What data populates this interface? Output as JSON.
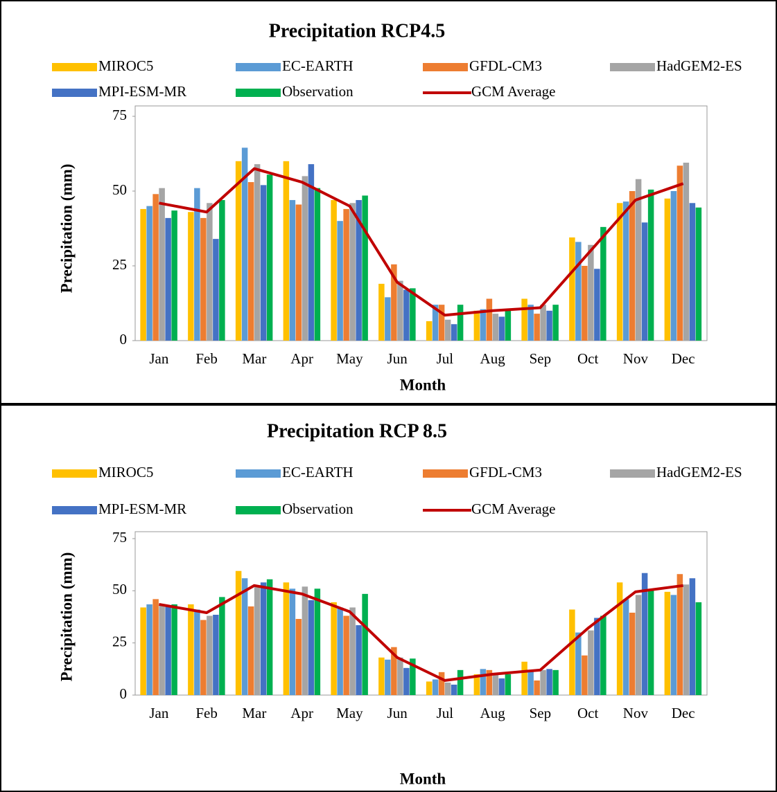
{
  "chart_data": [
    {
      "type": "bar",
      "title": "Precipitation RCP4.5",
      "x_label": "Month",
      "y_label": "Precipitation (mm)",
      "categories": [
        "Jan",
        "Feb",
        "Mar",
        "Apr",
        "May",
        "Jun",
        "Jul",
        "Aug",
        "Sep",
        "Oct",
        "Nov",
        "Dec"
      ],
      "ylim": [
        0,
        75
      ],
      "yticks": [
        0,
        25,
        50,
        75
      ],
      "legend": "top",
      "series": [
        {
          "name": "MIROC5",
          "color": "#FFC000",
          "values": [
            44,
            43,
            60,
            60,
            47,
            19,
            6.5,
            10,
            14,
            34.5,
            46,
            47.5
          ]
        },
        {
          "name": "EC-EARTH",
          "color": "#5B9BD5",
          "values": [
            45,
            51,
            64.5,
            47,
            40,
            14.5,
            12,
            10.5,
            12,
            33,
            46.5,
            50
          ]
        },
        {
          "name": "GFDL-CM3",
          "color": "#ED7D31",
          "values": [
            49,
            41,
            53,
            45.5,
            44,
            25.5,
            12,
            14,
            9,
            25,
            50,
            58.5
          ]
        },
        {
          "name": "HadGEM2-ES",
          "color": "#A5A5A5",
          "values": [
            51,
            46,
            59,
            55,
            46,
            20,
            7,
            9,
            12,
            32,
            54,
            59.5
          ]
        },
        {
          "name": "MPI-ESM-MR",
          "color": "#4472C4",
          "values": [
            41,
            34,
            52,
            59,
            47,
            17,
            5.5,
            8,
            10,
            24,
            39.5,
            46
          ]
        },
        {
          "name": "Observation",
          "color": "#00B050",
          "values": [
            43.5,
            47,
            55.5,
            51,
            48.5,
            17.5,
            12,
            10,
            12,
            38,
            50.5,
            44.5
          ]
        },
        {
          "name": "GCM Average",
          "color": "#C00000",
          "kind": "line",
          "values": [
            46,
            43,
            57.5,
            53,
            45,
            19.5,
            8.5,
            10,
            11,
            29,
            47,
            52.5
          ]
        }
      ]
    },
    {
      "type": "bar",
      "title": "Precipitation RCP 8.5",
      "x_label": "Month",
      "y_label": "Precipitation (mm)",
      "categories": [
        "Jan",
        "Feb",
        "Mar",
        "Apr",
        "May",
        "Jun",
        "Jul",
        "Aug",
        "Sep",
        "Oct",
        "Nov",
        "Dec"
      ],
      "ylim": [
        0,
        75
      ],
      "yticks": [
        0,
        25,
        50,
        75
      ],
      "legend": "top",
      "series": [
        {
          "name": "MIROC5",
          "color": "#FFC000",
          "values": [
            42,
            43.5,
            59.5,
            54,
            44.5,
            18,
            6.5,
            10,
            16,
            41,
            54,
            49.5
          ]
        },
        {
          "name": "EC-EARTH",
          "color": "#5B9BD5",
          "values": [
            43.5,
            41,
            56,
            51,
            42,
            17,
            7.5,
            12.5,
            12,
            30,
            46,
            48
          ]
        },
        {
          "name": "GFDL-CM3",
          "color": "#ED7D31",
          "values": [
            46,
            36,
            42.5,
            36.5,
            38,
            23,
            11,
            12,
            7,
            19,
            39.5,
            58
          ]
        },
        {
          "name": "HadGEM2-ES",
          "color": "#A5A5A5",
          "values": [
            43,
            38,
            52,
            52,
            42,
            18,
            6,
            10,
            12,
            31,
            48,
            53
          ]
        },
        {
          "name": "MPI-ESM-MR",
          "color": "#4472C4",
          "values": [
            42.5,
            38.5,
            54,
            45.5,
            33.5,
            13,
            5,
            8,
            12.5,
            37,
            58.5,
            56
          ]
        },
        {
          "name": "Observation",
          "color": "#00B050",
          "values": [
            43.5,
            47,
            55.5,
            51,
            48.5,
            17.5,
            12,
            10,
            12,
            38,
            50.5,
            44.5
          ]
        },
        {
          "name": "GCM Average",
          "color": "#C00000",
          "kind": "line",
          "values": [
            43.5,
            39.5,
            52.5,
            48.5,
            40,
            18,
            7,
            10,
            12,
            32,
            49.5,
            52.5
          ]
        }
      ]
    }
  ]
}
